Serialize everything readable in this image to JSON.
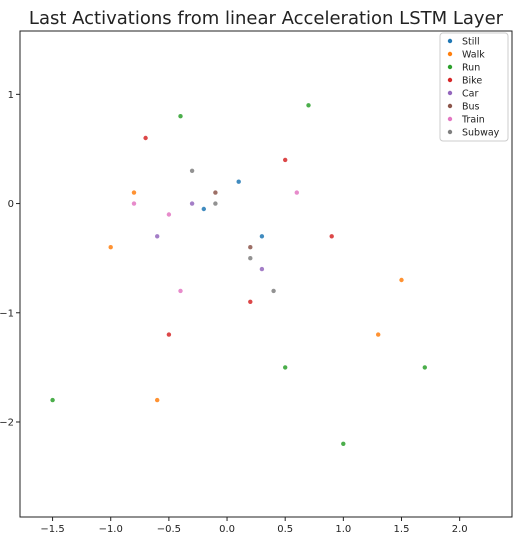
{
  "chart_data": {
    "type": "scatter",
    "title": "Last Activations from linear Acceleration LSTM Layer",
    "xlabel": "",
    "ylabel": "",
    "xlim": [
      -1.78,
      2.45
    ],
    "ylim": [
      -2.87,
      1.58
    ],
    "x_ticks": [
      -1.5,
      -1.0,
      -0.5,
      0.0,
      0.5,
      1.0,
      1.5,
      2.0
    ],
    "x_tick_labels": [
      "−1.5",
      "−1.0",
      "−0.5",
      "0.0",
      "0.5",
      "1.0",
      "1.5",
      "2.0"
    ],
    "y_ticks": [
      1,
      0,
      -1,
      -2
    ],
    "y_tick_labels": [
      "1",
      "0",
      "−1",
      "−2"
    ],
    "grid": false,
    "legend_position": "top-right",
    "series": [
      {
        "name": "Still",
        "color": "#1f77b4",
        "points": [
          [
            -0.2,
            -0.05
          ],
          [
            0.1,
            0.2
          ],
          [
            0.3,
            -0.3
          ]
        ]
      },
      {
        "name": "Walk",
        "color": "#ff7f0e",
        "points": [
          [
            -1.0,
            -0.4
          ],
          [
            -0.8,
            0.1
          ],
          [
            1.5,
            -0.7
          ],
          [
            -0.6,
            -1.8
          ],
          [
            1.3,
            -1.2
          ]
        ]
      },
      {
        "name": "Run",
        "color": "#2ca02c",
        "points": [
          [
            -1.5,
            -1.8
          ],
          [
            0.7,
            0.9
          ],
          [
            1.0,
            -2.2
          ],
          [
            -0.4,
            0.8
          ],
          [
            1.7,
            -1.5
          ],
          [
            0.5,
            -1.5
          ]
        ]
      },
      {
        "name": "Bike",
        "color": "#d62728",
        "points": [
          [
            0.5,
            0.4
          ],
          [
            -0.7,
            0.6
          ],
          [
            0.9,
            -0.3
          ],
          [
            -0.5,
            -1.2
          ],
          [
            0.2,
            -0.9
          ]
        ]
      },
      {
        "name": "Car",
        "color": "#9467bd",
        "points": [
          [
            -0.3,
            0.0
          ],
          [
            0.3,
            -0.6
          ],
          [
            -0.6,
            -0.3
          ]
        ]
      },
      {
        "name": "Bus",
        "color": "#8c564b",
        "points": [
          [
            -0.1,
            0.1
          ],
          [
            0.2,
            -0.4
          ]
        ]
      },
      {
        "name": "Train",
        "color": "#e377c2",
        "points": [
          [
            -0.8,
            0.0
          ],
          [
            -0.5,
            -0.1
          ],
          [
            0.6,
            0.1
          ],
          [
            -0.4,
            -0.8
          ]
        ]
      },
      {
        "name": "Subway",
        "color": "#7f7f7f",
        "points": [
          [
            -0.1,
            0.0
          ],
          [
            0.2,
            -0.5
          ],
          [
            0.4,
            -0.8
          ],
          [
            -0.3,
            0.3
          ]
        ]
      }
    ]
  }
}
